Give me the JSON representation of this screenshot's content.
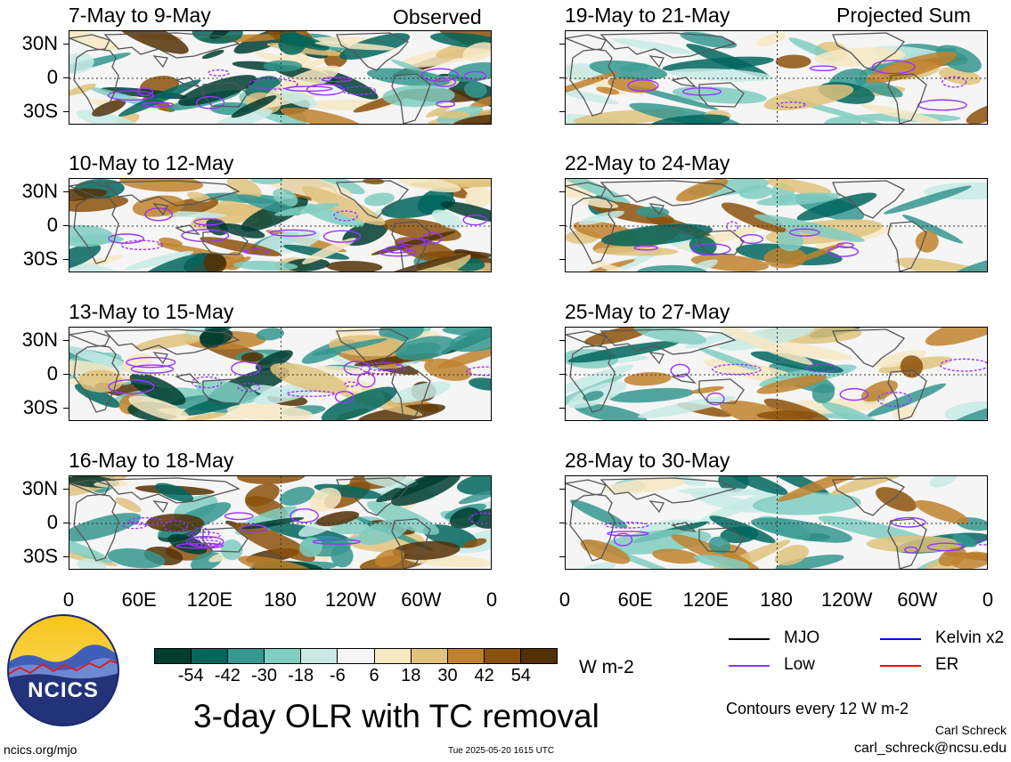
{
  "panel_titles_left": [
    "7-May to 9-May",
    "10-May to 12-May",
    "13-May to 15-May",
    "16-May to 18-May"
  ],
  "panel_titles_right": [
    "19-May to 21-May",
    "22-May to 24-May",
    "25-May to 27-May",
    "28-May to 30-May"
  ],
  "column_labels": {
    "left": "Observed",
    "right": "Projected Sum"
  },
  "lat_labels": [
    "30N",
    "0",
    "30S"
  ],
  "lon_labels": [
    "0",
    "60E",
    "120E",
    "180",
    "120W",
    "60W",
    "0"
  ],
  "colorbar": {
    "colors": [
      "#003c30",
      "#01665e",
      "#35978f",
      "#80cdc1",
      "#c7eae5",
      "#f5f5f5",
      "#f6e8c3",
      "#dfc27d",
      "#bf812d",
      "#8c510a",
      "#543005"
    ],
    "labels": [
      "-54",
      "-42",
      "-30",
      "-18",
      "-6",
      "6",
      "18",
      "30",
      "42",
      "54"
    ],
    "unit": "W m-2"
  },
  "legend": [
    {
      "label": "MJO",
      "color": "#000000"
    },
    {
      "label": "Kelvin x2",
      "color": "#0000ff"
    },
    {
      "label": "Low",
      "color": "#9933ff"
    },
    {
      "label": "ER",
      "color": "#ff0000"
    }
  ],
  "main_title": "3-day OLR with TC removal",
  "contour_note": "Contours every 12 W m-2",
  "logo_text": "NCICS",
  "footer": {
    "url": "ncics.org/mjo",
    "timestamp": "Tue 2025-05-20 1615 UTC",
    "author": "Carl Schreck",
    "email": "carl_schreck@ncsu.edu"
  }
}
